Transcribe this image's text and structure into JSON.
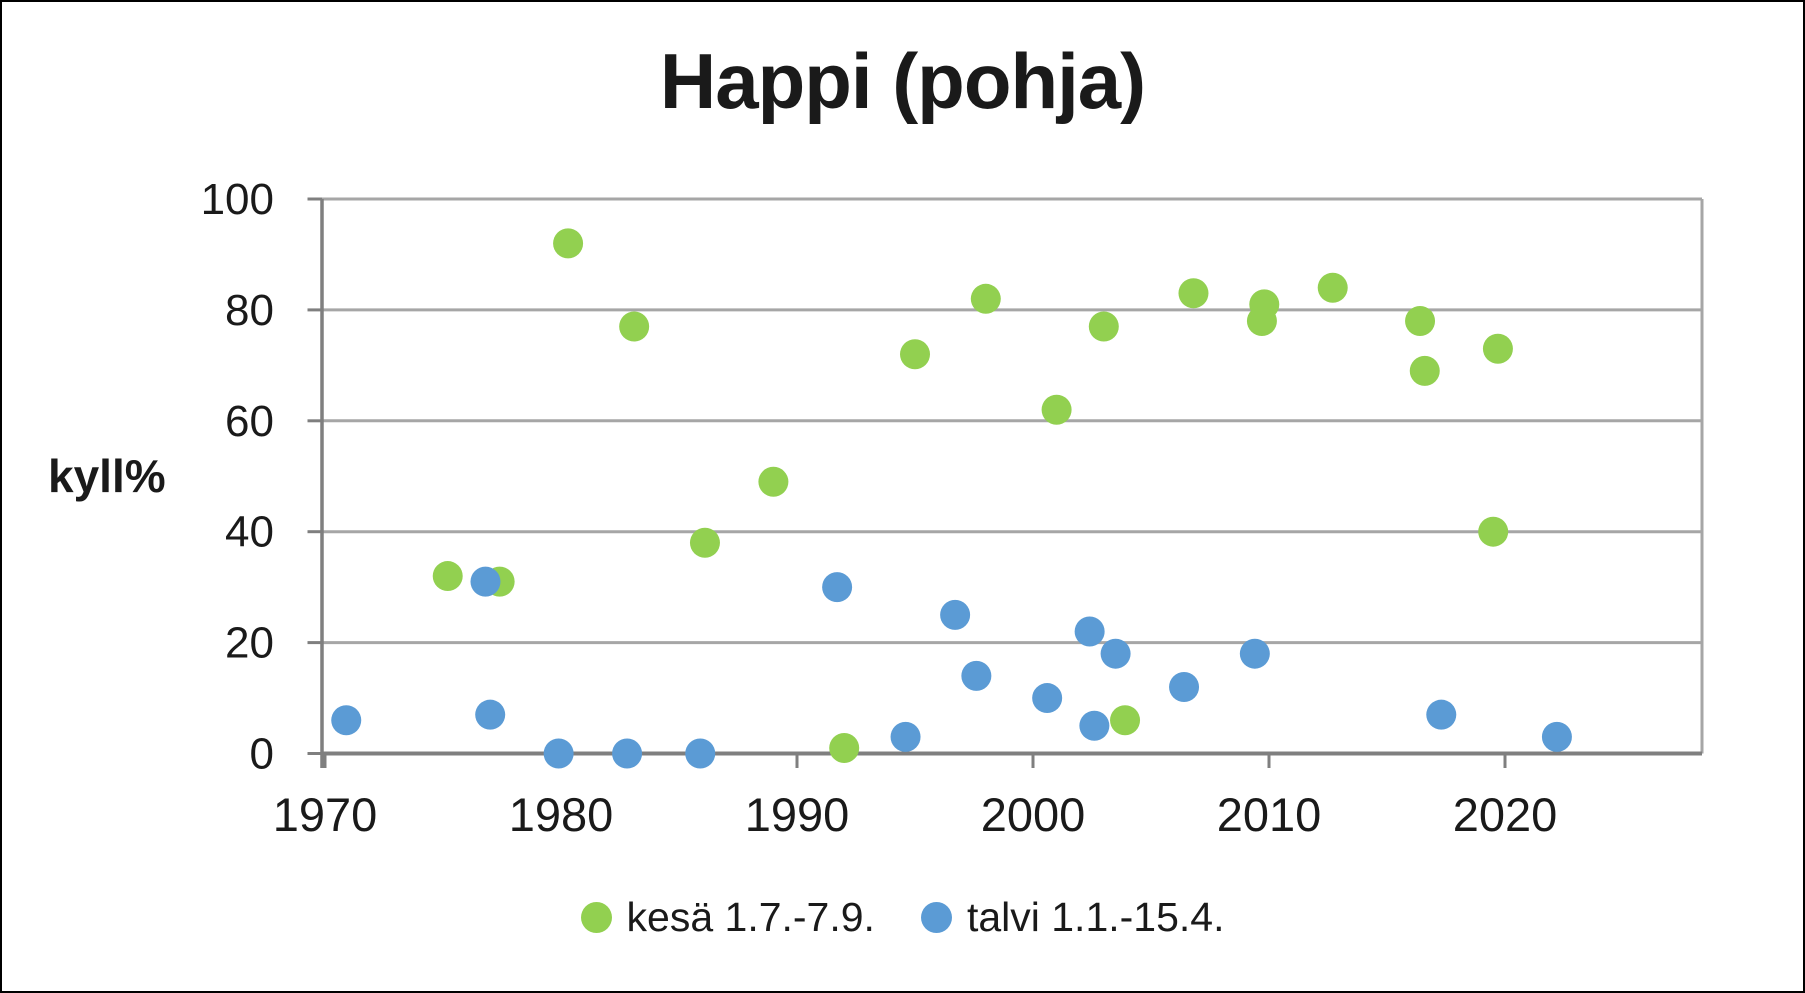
{
  "window": {
    "background": "#FFFFFF",
    "border_color": "#000000"
  },
  "chart_data": {
    "type": "scatter",
    "title": "Happi (pohja)",
    "ylabel": "kyll%",
    "xlabel": "",
    "ylim": [
      0,
      100
    ],
    "xlim": [
      1969.9,
      2028.4
    ],
    "x_ticks": [
      1970,
      1980,
      1990,
      2000,
      2010,
      2020
    ],
    "y_ticks": [
      0,
      20,
      40,
      60,
      80,
      100
    ],
    "grid": "horizontal-only",
    "legend_position": "bottom-center",
    "marker": "circle",
    "colors": {
      "grid": "#A6A6A6",
      "axis": "#7F7F7F",
      "tick_text": "#1A1A1A",
      "title_text": "#1A1A1A",
      "kesa_green": "#92D050",
      "talvi_blue": "#5B9BD5"
    },
    "series": [
      {
        "name": "kesä 1.7.-7.9.",
        "color": "#92D050",
        "points": [
          [
            1975.2,
            32
          ],
          [
            1977.4,
            31
          ],
          [
            1980.3,
            92
          ],
          [
            1983.1,
            77
          ],
          [
            1986.1,
            38
          ],
          [
            1989.0,
            49
          ],
          [
            1992.0,
            1
          ],
          [
            1995.0,
            72
          ],
          [
            1998.0,
            82
          ],
          [
            2001.0,
            62
          ],
          [
            2003.0,
            77
          ],
          [
            2003.9,
            6
          ],
          [
            2006.8,
            83
          ],
          [
            2009.7,
            78
          ],
          [
            2009.8,
            81
          ],
          [
            2012.7,
            84
          ],
          [
            2016.4,
            78
          ],
          [
            2016.6,
            69
          ],
          [
            2019.5,
            40
          ],
          [
            2019.7,
            73
          ]
        ]
      },
      {
        "name": "talvi 1.1.-15.4.",
        "color": "#5B9BD5",
        "points": [
          [
            1970.9,
            6
          ],
          [
            1976.8,
            31
          ],
          [
            1977.0,
            7
          ],
          [
            1979.9,
            0
          ],
          [
            1982.8,
            0
          ],
          [
            1985.9,
            0
          ],
          [
            1991.7,
            30
          ],
          [
            1994.6,
            3
          ],
          [
            1996.7,
            25
          ],
          [
            1997.6,
            14
          ],
          [
            2000.6,
            10
          ],
          [
            2002.4,
            22
          ],
          [
            2002.6,
            5
          ],
          [
            2003.5,
            18
          ],
          [
            2006.4,
            12
          ],
          [
            2009.4,
            18
          ],
          [
            2017.3,
            7
          ],
          [
            2022.2,
            3
          ]
        ]
      }
    ]
  }
}
